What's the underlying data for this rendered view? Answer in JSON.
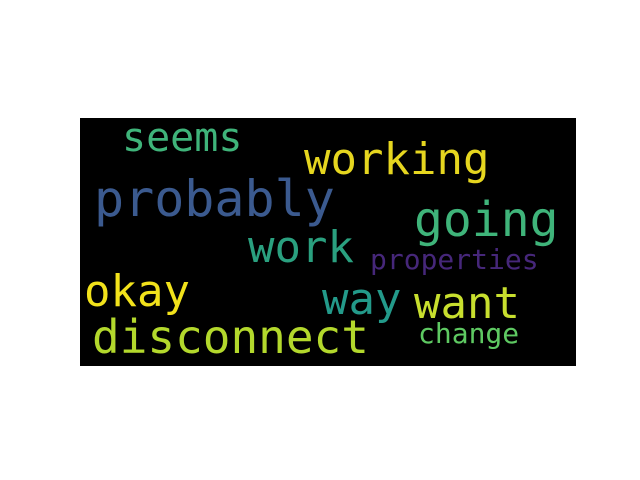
{
  "words": [
    {
      "text": "seems",
      "color": "#3fb47a"
    },
    {
      "text": "working",
      "color": "#e6d61f"
    },
    {
      "text": "probably",
      "color": "#3b5a8f"
    },
    {
      "text": "going",
      "color": "#3fb47a"
    },
    {
      "text": "work",
      "color": "#2aa07f"
    },
    {
      "text": "properties",
      "color": "#46277a"
    },
    {
      "text": "okay",
      "color": "#f2e21b"
    },
    {
      "text": "way",
      "color": "#239a8a"
    },
    {
      "text": "want",
      "color": "#c8df2e"
    },
    {
      "text": "disconnect",
      "color": "#b3d82c"
    },
    {
      "text": "change",
      "color": "#5ec962"
    }
  ]
}
